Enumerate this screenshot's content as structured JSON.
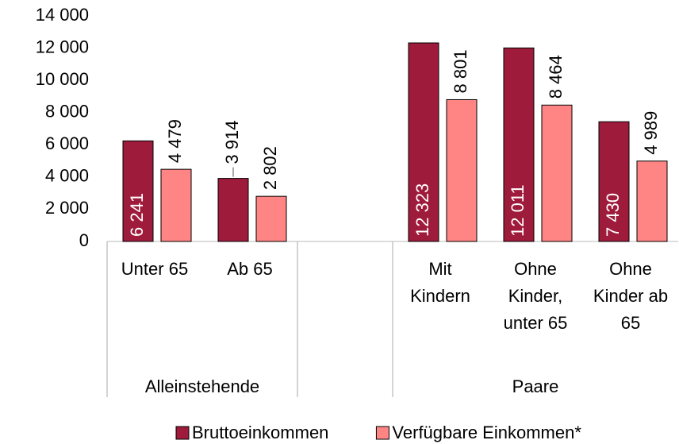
{
  "chart_data": {
    "type": "bar",
    "categories": [
      "Unter 65",
      "Ab 65",
      null,
      "Mit Kindern",
      "Ohne Kinder, unter 65",
      "Ohne Kinder ab 65"
    ],
    "groups": [
      {
        "name": "Alleinstehende",
        "from": 0,
        "to": 1
      },
      {
        "name": "Paare",
        "from": 3,
        "to": 5
      }
    ],
    "series": [
      {
        "name": "Bruttoeinkommen",
        "color": "#9e1b3b",
        "values": [
          6241,
          3914,
          null,
          12323,
          12011,
          7430
        ],
        "value_labels": [
          "6 241",
          "3 914",
          null,
          "12 323",
          "12 011",
          "7 430"
        ]
      },
      {
        "name": "Verfügbare Einkommen*",
        "color": "#ff8585",
        "values": [
          4479,
          2802,
          null,
          8801,
          8464,
          4989
        ],
        "value_labels": [
          "4 479",
          "2 802",
          null,
          "8 801",
          "8 464",
          "4 989"
        ]
      }
    ],
    "ylim": [
      0,
      14000
    ],
    "yticks": [
      0,
      {
        "value": 2000,
        "label": "2 000"
      },
      {
        "value": 4000,
        "label": "4 000"
      },
      {
        "value": 6000,
        "label": "6 000"
      },
      {
        "value": 8000,
        "label": "8 000"
      },
      {
        "value": 10000,
        "label": "10 000"
      },
      {
        "value": 12000,
        "label": "12 000"
      },
      {
        "value": 14000,
        "label": "14 000"
      }
    ],
    "grid": false,
    "legend": "bottom"
  }
}
